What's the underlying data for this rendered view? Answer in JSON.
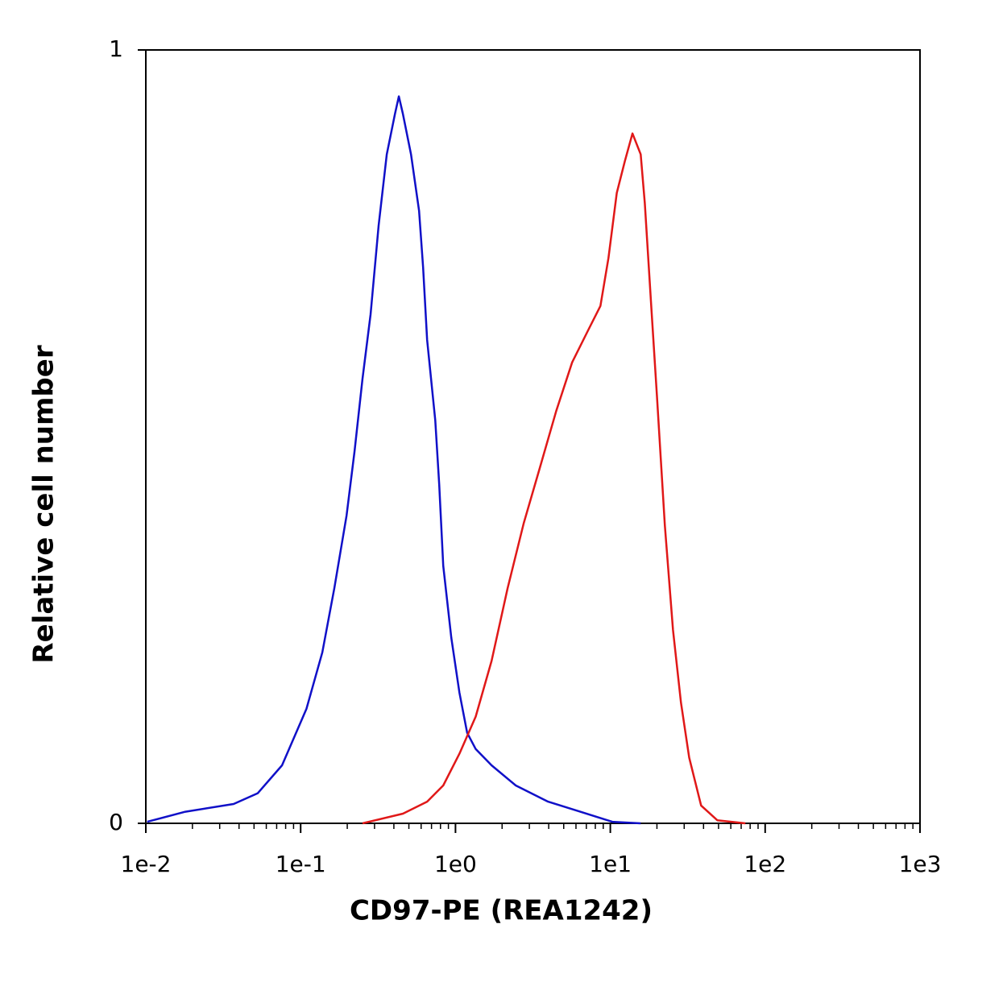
{
  "chart_data": {
    "type": "line",
    "xlabel": "CD97-PE (REA1242)",
    "ylabel": "Relative cell number",
    "xscale": "log",
    "xlim": [
      0.01,
      1000
    ],
    "xticks": [
      {
        "value": 0.01,
        "label": "1e-2"
      },
      {
        "value": 0.1,
        "label": "1e-1"
      },
      {
        "value": 1,
        "label": "1e0"
      },
      {
        "value": 10,
        "label": "1e1"
      },
      {
        "value": 100,
        "label": "1e2"
      },
      {
        "value": 1000,
        "label": "1e3"
      }
    ],
    "ylim": [
      0,
      1
    ],
    "yticks": [
      0,
      1
    ],
    "grid": false,
    "series": [
      {
        "color": "#1010c8",
        "x": [
          0.0102,
          0.018,
          0.0369,
          0.0529,
          0.0758,
          0.109,
          0.138,
          0.165,
          0.198,
          0.223,
          0.251,
          0.283,
          0.319,
          0.36,
          0.406,
          0.431,
          0.458,
          0.516,
          0.582,
          0.618,
          0.656,
          0.74,
          0.785,
          0.834,
          0.94,
          1.06,
          1.19,
          1.35,
          1.71,
          2.45,
          3.96,
          6.4,
          10.3,
          15.7
        ],
        "values": [
          0.002,
          0.015,
          0.025,
          0.039,
          0.075,
          0.148,
          0.221,
          0.304,
          0.398,
          0.481,
          0.575,
          0.658,
          0.773,
          0.865,
          0.917,
          0.94,
          0.917,
          0.865,
          0.792,
          0.719,
          0.625,
          0.521,
          0.438,
          0.333,
          0.24,
          0.169,
          0.117,
          0.096,
          0.075,
          0.049,
          0.028,
          0.015,
          0.002,
          0
        ]
      },
      {
        "color": "#e01818",
        "x": [
          0.251,
          0.458,
          0.656,
          0.834,
          1.06,
          1.35,
          1.71,
          2.17,
          2.76,
          3.51,
          4.47,
          5.67,
          7.21,
          8.63,
          9.73,
          11.0,
          12.4,
          13.9,
          15.7,
          16.7,
          18.4,
          20.0,
          22.5,
          25.4,
          28.6,
          32.3,
          38.6,
          49.1,
          74.6
        ],
        "values": [
          0,
          0.0125,
          0.028,
          0.049,
          0.09,
          0.138,
          0.21,
          0.304,
          0.388,
          0.46,
          0.533,
          0.596,
          0.638,
          0.669,
          0.731,
          0.815,
          0.856,
          0.892,
          0.865,
          0.802,
          0.667,
          0.552,
          0.385,
          0.25,
          0.156,
          0.085,
          0.023,
          0.004,
          0
        ]
      }
    ]
  }
}
